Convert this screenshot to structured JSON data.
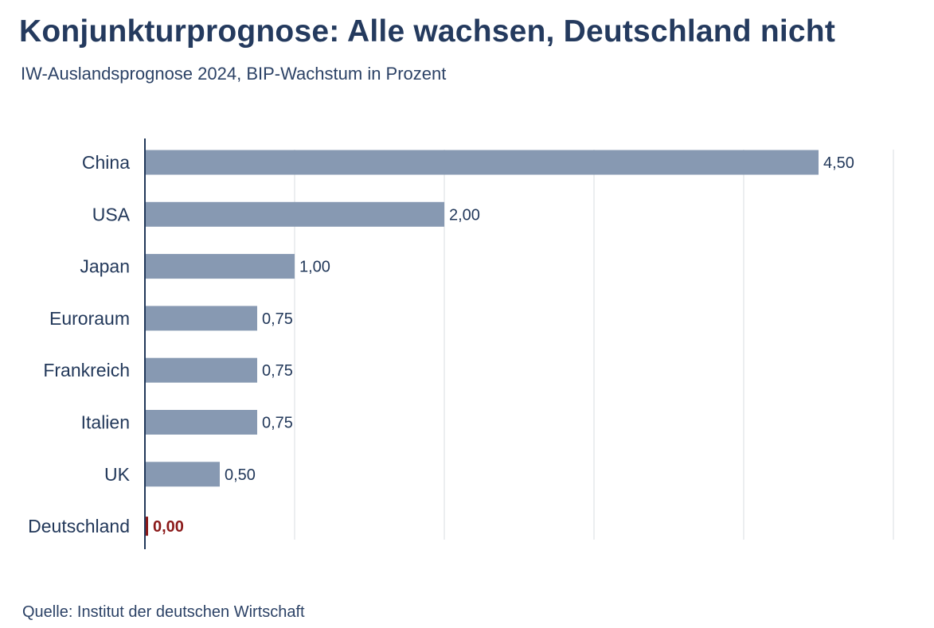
{
  "title": "Konjunkturprognose: Alle wachsen, Deutschland nicht",
  "subtitle": "IW-Auslandsprognose 2024, BIP-Wachstum in Prozent",
  "source": "Quelle: Institut der deutschen Wirtschaft",
  "colors": {
    "bar": "#8799b2",
    "highlight": "#8b1a1a",
    "axis": "#22385a",
    "grid": "#d8dce2"
  },
  "chart_data": {
    "type": "bar",
    "orientation": "horizontal",
    "categories": [
      "China",
      "USA",
      "Japan",
      "Euroraum",
      "Frankreich",
      "Italien",
      "UK",
      "Deutschland"
    ],
    "values": [
      4.5,
      2.0,
      1.0,
      0.75,
      0.75,
      0.75,
      0.5,
      0.0
    ],
    "value_labels": [
      "4,50",
      "2,00",
      "1,00",
      "0,75",
      "0,75",
      "0,75",
      "0,50",
      "0,00"
    ],
    "highlight": "Deutschland",
    "xlim": [
      0,
      5
    ],
    "grid": true
  }
}
